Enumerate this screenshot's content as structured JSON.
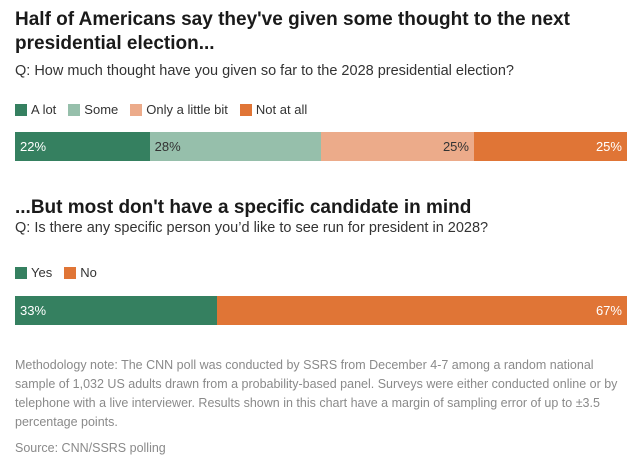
{
  "chart_data": [
    {
      "type": "bar",
      "stacked": true,
      "orientation": "horizontal",
      "title": "Half of Americans say they've given some thought to the next presidential election...",
      "subtitle": "Q: How much thought have you given so far to the 2028 presidential election?",
      "categories": [
        "A lot",
        "Some",
        "Only a little bit",
        "Not at all"
      ],
      "values": [
        22,
        28,
        25,
        25
      ],
      "labels": [
        "22%",
        "28%",
        "25%",
        "25%"
      ],
      "colors": [
        "#358060",
        "#96bfab",
        "#ecab8a",
        "#e07536"
      ],
      "label_colors": [
        "#ffffff",
        "#333333",
        "#333333",
        "#ffffff"
      ],
      "label_align": [
        "left",
        "left",
        "right",
        "right"
      ],
      "legend": "top-left"
    },
    {
      "type": "bar",
      "stacked": true,
      "orientation": "horizontal",
      "title": "...But most don't have a specific candidate in mind",
      "subtitle": "Q: Is there any specific person you’d like to see run for president in 2028?",
      "categories": [
        "Yes",
        "No"
      ],
      "values": [
        33,
        67
      ],
      "labels": [
        "33%",
        "67%"
      ],
      "colors": [
        "#358060",
        "#e07536"
      ],
      "label_colors": [
        "#ffffff",
        "#ffffff"
      ],
      "label_align": [
        "left",
        "right"
      ],
      "legend": "top-left"
    }
  ],
  "note": "Methodology note: The CNN poll was conducted by SSRS from December 4-7 among a random national sample of 1,032 US adults drawn from a probability-based panel. Surveys were either conducted online or by telephone with a live interviewer. Results shown in this chart have a margin of sampling error of up to ±3.5 percentage points.",
  "source": "Source: CNN/SSRS polling"
}
